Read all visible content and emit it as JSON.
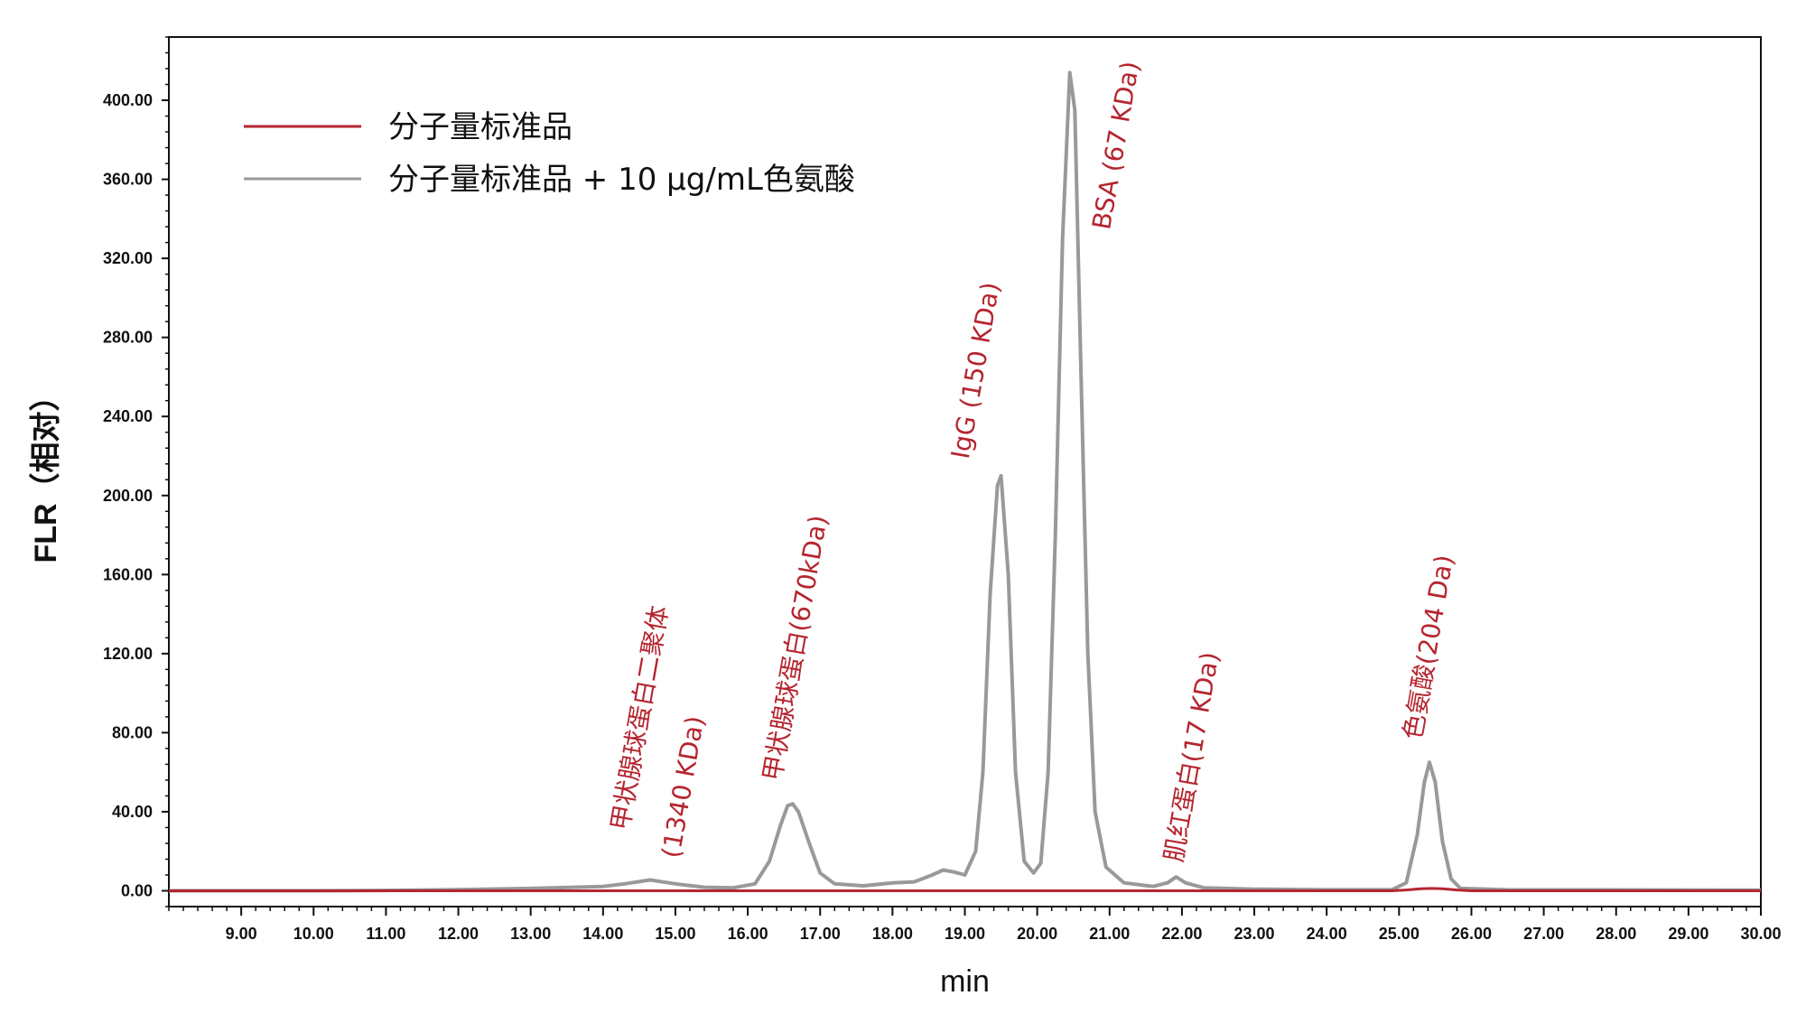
{
  "chart_data": {
    "type": "line",
    "xlabel": "min",
    "ylabel": "FLR（相对）",
    "xlim": [
      8.0,
      30.0
    ],
    "ylim": [
      -8,
      432
    ],
    "x_ticks": [
      "9.00",
      "10.00",
      "11.00",
      "12.00",
      "13.00",
      "14.00",
      "15.00",
      "16.00",
      "17.00",
      "18.00",
      "19.00",
      "20.00",
      "21.00",
      "22.00",
      "23.00",
      "24.00",
      "25.00",
      "26.00",
      "27.00",
      "28.00",
      "29.00",
      "30.00"
    ],
    "y_ticks": [
      "0.00",
      "40.00",
      "80.00",
      "120.00",
      "160.00",
      "200.00",
      "240.00",
      "280.00",
      "320.00",
      "360.00",
      "400.00"
    ],
    "grid": false,
    "legend_position": "top-left",
    "series": [
      {
        "name": "分子量标准品",
        "color": "#b5252f",
        "points": [
          [
            8.0,
            0
          ],
          [
            24.9,
            0
          ],
          [
            25.1,
            0.4
          ],
          [
            25.3,
            1.0
          ],
          [
            25.45,
            1.2
          ],
          [
            25.6,
            1.0
          ],
          [
            25.8,
            0.4
          ],
          [
            26.0,
            0
          ],
          [
            30.0,
            0
          ]
        ]
      },
      {
        "name": "分子量标准品 + 10 μg/mL色氨酸",
        "color": "#999999",
        "points": [
          [
            8.0,
            0
          ],
          [
            10.0,
            0
          ],
          [
            11.0,
            0.2
          ],
          [
            12.0,
            0.6
          ],
          [
            13.0,
            1.2
          ],
          [
            13.6,
            1.8
          ],
          [
            14.0,
            2.2
          ],
          [
            14.3,
            3.5
          ],
          [
            14.65,
            5.5
          ],
          [
            15.0,
            3.5
          ],
          [
            15.4,
            1.8
          ],
          [
            15.8,
            1.5
          ],
          [
            16.1,
            3.5
          ],
          [
            16.3,
            15
          ],
          [
            16.45,
            33
          ],
          [
            16.55,
            43
          ],
          [
            16.62,
            44
          ],
          [
            16.7,
            40
          ],
          [
            16.85,
            24
          ],
          [
            17.0,
            9
          ],
          [
            17.2,
            3.5
          ],
          [
            17.6,
            2.5
          ],
          [
            18.0,
            4
          ],
          [
            18.3,
            4.5
          ],
          [
            18.55,
            8
          ],
          [
            18.7,
            10.5
          ],
          [
            18.85,
            9.5
          ],
          [
            19.0,
            8
          ],
          [
            19.15,
            20
          ],
          [
            19.25,
            60
          ],
          [
            19.35,
            150
          ],
          [
            19.45,
            205
          ],
          [
            19.5,
            210
          ],
          [
            19.6,
            160
          ],
          [
            19.7,
            60
          ],
          [
            19.82,
            15
          ],
          [
            19.95,
            9
          ],
          [
            20.05,
            14
          ],
          [
            20.15,
            60
          ],
          [
            20.25,
            180
          ],
          [
            20.35,
            330
          ],
          [
            20.45,
            414
          ],
          [
            20.52,
            395
          ],
          [
            20.6,
            270
          ],
          [
            20.7,
            120
          ],
          [
            20.8,
            40
          ],
          [
            20.95,
            12
          ],
          [
            21.2,
            4
          ],
          [
            21.6,
            2.2
          ],
          [
            21.8,
            4
          ],
          [
            21.92,
            7
          ],
          [
            22.05,
            4
          ],
          [
            22.3,
            1.5
          ],
          [
            23.0,
            0.8
          ],
          [
            24.0,
            0.5
          ],
          [
            24.9,
            0.5
          ],
          [
            25.1,
            4
          ],
          [
            25.25,
            28
          ],
          [
            25.35,
            55
          ],
          [
            25.42,
            65
          ],
          [
            25.5,
            55
          ],
          [
            25.6,
            25
          ],
          [
            25.72,
            6
          ],
          [
            25.85,
            1.2
          ],
          [
            26.5,
            0.5
          ],
          [
            30.0,
            0.3
          ]
        ]
      }
    ],
    "annotations": [
      {
        "text": "甲状腺球蛋白二聚体",
        "x": 14.35,
        "y": 30
      },
      {
        "text": "(1340 KDa)",
        "x": 15.05,
        "y": 16
      },
      {
        "text": "甲状腺球蛋白(670kDa)",
        "x": 16.45,
        "y": 55
      },
      {
        "text": "IgG (150 KDa)",
        "x": 19.05,
        "y": 218
      },
      {
        "text": "BSA (67 KDa)",
        "x": 21.0,
        "y": 334
      },
      {
        "text": "肌红蛋白(17 KDa)",
        "x": 22.0,
        "y": 14
      },
      {
        "text": "色氨酸(204 Da)",
        "x": 25.3,
        "y": 76
      }
    ]
  }
}
